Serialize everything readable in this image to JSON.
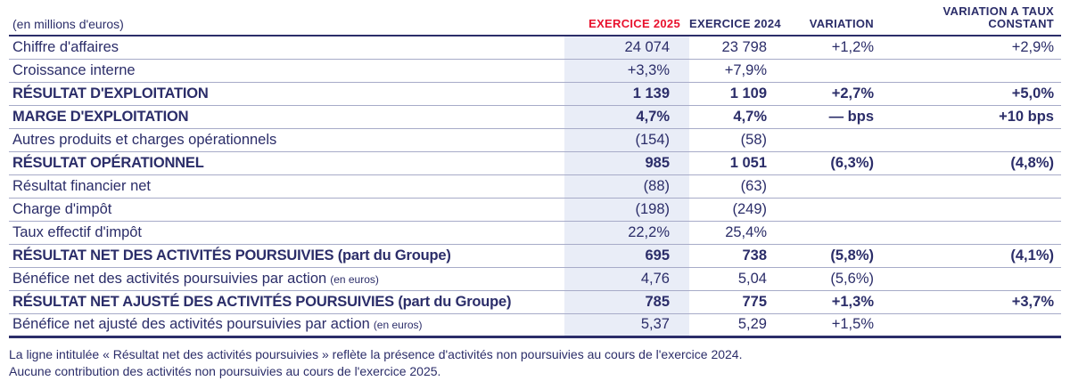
{
  "colors": {
    "ink": "#2b2d69",
    "accent": "#e8112d",
    "highlight": "#e9edf7",
    "rule": "#a7abc8"
  },
  "header": {
    "unit": "(en millions d'euros)",
    "col_2025": "EXERCICE 2025",
    "col_2024": "EXERCICE 2024",
    "col_variation": "VARIATION",
    "col_vtc_line1": "VARIATION A TAUX",
    "col_vtc_line2": "CONSTANT"
  },
  "rows": [
    {
      "label": "Chiffre d'affaires",
      "suffix": "",
      "v2025": "24 074",
      "v2024": "23 798",
      "variation": "+1,2%",
      "vtc": "+2,9%"
    },
    {
      "label": "Croissance interne",
      "suffix": "",
      "v2025": "+3,3%",
      "v2024": "+7,9%",
      "variation": "",
      "vtc": ""
    },
    {
      "label": "RÉSULTAT D'EXPLOITATION",
      "suffix": "",
      "v2025": "1 139",
      "v2024": "1 109",
      "variation": "+2,7%",
      "vtc": "+5,0%"
    },
    {
      "label": "MARGE D'EXPLOITATION",
      "suffix": "",
      "v2025": "4,7%",
      "v2024": "4,7%",
      "variation": "— bps",
      "vtc": "+10 bps"
    },
    {
      "label": "Autres produits et charges opérationnels",
      "suffix": "",
      "v2025": "(154)",
      "v2024": "(58)",
      "variation": "",
      "vtc": ""
    },
    {
      "label": "RÉSULTAT OPÉRATIONNEL",
      "suffix": "",
      "v2025": "985",
      "v2024": "1 051",
      "variation": "(6,3%)",
      "vtc": "(4,8%)"
    },
    {
      "label": "Résultat financier net",
      "suffix": "",
      "v2025": "(88)",
      "v2024": "(63)",
      "variation": "",
      "vtc": ""
    },
    {
      "label": "Charge d'impôt",
      "suffix": "",
      "v2025": "(198)",
      "v2024": "(249)",
      "variation": "",
      "vtc": ""
    },
    {
      "label": "Taux effectif d'impôt",
      "suffix": "",
      "v2025": "22,2%",
      "v2024": "25,4%",
      "variation": "",
      "vtc": ""
    },
    {
      "label": "RÉSULTAT NET DES ACTIVITÉS POURSUIVIES (part du Groupe)",
      "suffix": "",
      "v2025": "695",
      "v2024": "738",
      "variation": "(5,8%)",
      "vtc": "(4,1%)"
    },
    {
      "label": "Bénéfice net des activités poursuivies par action",
      "suffix": "(en euros)",
      "v2025": "4,76",
      "v2024": "5,04",
      "variation": "(5,6%)",
      "vtc": ""
    },
    {
      "label": "RÉSULTAT NET AJUSTÉ DES ACTIVITÉS POURSUIVIES (part du Groupe)",
      "suffix": "",
      "v2025": "785",
      "v2024": "775",
      "variation": "+1,3%",
      "vtc": "+3,7%"
    },
    {
      "label": "Bénéfice net ajusté des activités poursuivies par action",
      "suffix": "(en euros)",
      "v2025": "5,37",
      "v2024": "5,29",
      "variation": "+1,5%",
      "vtc": ""
    }
  ],
  "footnotes": [
    "La ligne intitulée « Résultat net des activités poursuivies » reflète la présence d'activités non poursuivies au cours de l'exercice 2024.",
    "Aucune contribution des activités non poursuivies au cours de l'exercice 2025."
  ]
}
